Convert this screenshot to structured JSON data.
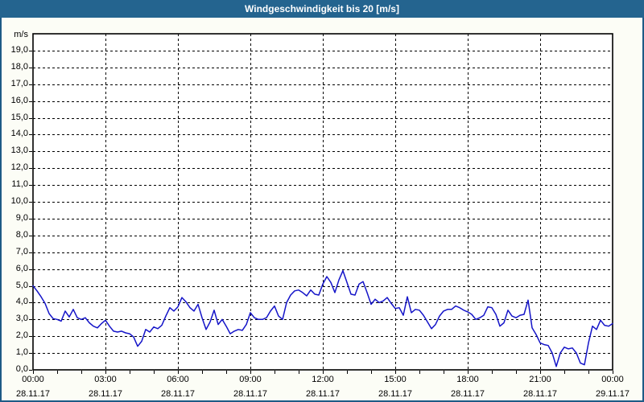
{
  "window": {
    "title": "Windgeschwindigkeit bis 20 [m/s]"
  },
  "colors": {
    "titlebar_bg": "#24648f",
    "titlebar_text": "#ffffff",
    "frame_border": "#1d5a86",
    "content_bg": "#fcfdf6",
    "plot_bg": "#ffffff",
    "grid_line": "#000000",
    "axis_line": "#000000",
    "series_line": "#1414c8",
    "label_text": "#000000"
  },
  "chart_data": {
    "type": "line",
    "title": "Windgeschwindigkeit bis 20 [m/s]",
    "ylabel": "m/s",
    "ylim": [
      0,
      20
    ],
    "grid": true,
    "legend_position": "none",
    "y_tick_step": 1,
    "y_tick_labels": [
      "19,0",
      "18,0",
      "17,0",
      "16,0",
      "15,0",
      "14,0",
      "13,0",
      "12,0",
      "11,0",
      "10,0",
      "9,0",
      "8,0",
      "7,0",
      "6,0",
      "5,0",
      "4,0",
      "3,0",
      "2,0",
      "1,0",
      "0,0"
    ],
    "x_axis": {
      "minor_tick_interval_hours": 1,
      "major_tick_interval_hours": 3,
      "ticks": [
        {
          "time": "00:00",
          "date": "28.11.17"
        },
        {
          "time": "03:00",
          "date": "28.11.17"
        },
        {
          "time": "06:00",
          "date": "28.11.17"
        },
        {
          "time": "09:00",
          "date": "28.11.17"
        },
        {
          "time": "12:00",
          "date": "28.11.17"
        },
        {
          "time": "15:00",
          "date": "28.11.17"
        },
        {
          "time": "18:00",
          "date": "28.11.17"
        },
        {
          "time": "21:00",
          "date": "28.11.17"
        },
        {
          "time": "00:00",
          "date": "29.11.17"
        }
      ]
    },
    "series": [
      {
        "name": "Windgeschwindigkeit",
        "unit": "m/s",
        "start": "28.11.17 00:00",
        "end": "29.11.17 00:00",
        "interval_minutes": 10,
        "values": [
          5.0,
          4.7,
          4.35,
          3.95,
          3.35,
          3.05,
          3.0,
          2.9,
          3.5,
          3.15,
          3.6,
          3.1,
          3.0,
          3.1,
          2.8,
          2.6,
          2.5,
          2.75,
          2.95,
          2.6,
          2.3,
          2.25,
          2.3,
          2.2,
          2.15,
          1.95,
          1.4,
          1.7,
          2.4,
          2.25,
          2.55,
          2.45,
          2.65,
          3.2,
          3.7,
          3.5,
          3.75,
          4.3,
          4.05,
          3.7,
          3.5,
          3.9,
          3.1,
          2.4,
          2.85,
          3.55,
          2.7,
          3.0,
          2.6,
          2.15,
          2.3,
          2.4,
          2.35,
          2.7,
          3.4,
          3.1,
          3.0,
          3.0,
          3.1,
          3.5,
          3.8,
          3.2,
          3.0,
          4.0,
          4.45,
          4.7,
          4.75,
          4.6,
          4.4,
          4.75,
          4.5,
          4.45,
          5.1,
          5.55,
          5.2,
          4.6,
          5.35,
          5.9,
          5.2,
          4.5,
          4.45,
          5.1,
          5.25,
          4.6,
          3.9,
          4.2,
          4.0,
          4.1,
          4.3,
          3.95,
          3.65,
          3.7,
          3.25,
          4.35,
          3.4,
          3.6,
          3.55,
          3.25,
          2.85,
          2.45,
          2.7,
          3.2,
          3.5,
          3.6,
          3.6,
          3.8,
          3.7,
          3.55,
          3.45,
          3.3,
          3.0,
          3.1,
          3.25,
          3.75,
          3.7,
          3.3,
          2.6,
          2.8,
          3.55,
          3.2,
          3.1,
          3.25,
          3.3,
          4.15,
          2.5,
          2.1,
          1.6,
          1.5,
          1.45,
          1.0,
          0.2,
          1.0,
          1.35,
          1.25,
          1.3,
          1.0,
          0.4,
          0.3,
          1.6,
          2.6,
          2.4,
          2.95,
          2.65,
          2.6,
          2.75
        ]
      }
    ]
  }
}
